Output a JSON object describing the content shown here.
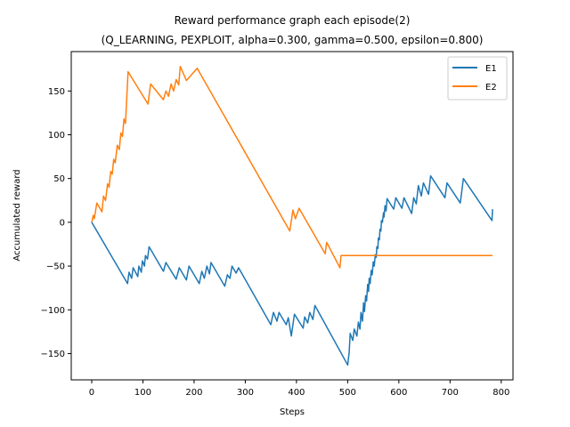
{
  "chart_data": {
    "type": "line",
    "title": "Reward performance graph each episode(2)",
    "subtitle": "(Q_LEARNING, PEXPLOIT, alpha=0.300, gamma=0.500, epsilon=0.800)",
    "xlabel": "Steps",
    "ylabel": "Accumulated reward",
    "xlim": [
      -40,
      823
    ],
    "ylim": [
      -180,
      195
    ],
    "xticks": [
      0,
      100,
      200,
      300,
      400,
      500,
      600,
      700,
      800
    ],
    "yticks": [
      -150,
      -100,
      -50,
      0,
      50,
      100,
      150
    ],
    "legend_position": "top-right",
    "grid": false,
    "series": [
      {
        "name": "E1",
        "color": "#1f77b4",
        "points": [
          [
            0,
            0
          ],
          [
            70,
            -70
          ],
          [
            73,
            -57
          ],
          [
            78,
            -64
          ],
          [
            81,
            -52
          ],
          [
            90,
            -62
          ],
          [
            92,
            -50
          ],
          [
            97,
            -57
          ],
          [
            99,
            -44
          ],
          [
            103,
            -50
          ],
          [
            105,
            -38
          ],
          [
            109,
            -42
          ],
          [
            112,
            -28
          ],
          [
            140,
            -56
          ],
          [
            145,
            -46
          ],
          [
            165,
            -65
          ],
          [
            171,
            -52
          ],
          [
            185,
            -66
          ],
          [
            190,
            -50
          ],
          [
            210,
            -70
          ],
          [
            215,
            -56
          ],
          [
            220,
            -64
          ],
          [
            225,
            -50
          ],
          [
            230,
            -59
          ],
          [
            233,
            -46
          ],
          [
            260,
            -73
          ],
          [
            265,
            -60
          ],
          [
            270,
            -64
          ],
          [
            274,
            -50
          ],
          [
            282,
            -58
          ],
          [
            287,
            -52
          ],
          [
            350,
            -117
          ],
          [
            355,
            -103
          ],
          [
            362,
            -113
          ],
          [
            366,
            -103
          ],
          [
            380,
            -117
          ],
          [
            384,
            -109
          ],
          [
            390,
            -130
          ],
          [
            396,
            -105
          ],
          [
            413,
            -121
          ],
          [
            416,
            -108
          ],
          [
            422,
            -115
          ],
          [
            426,
            -103
          ],
          [
            432,
            -111
          ],
          [
            436,
            -95
          ],
          [
            500,
            -163
          ],
          [
            503,
            -148
          ],
          [
            505,
            -127
          ],
          [
            510,
            -135
          ],
          [
            513,
            -122
          ],
          [
            518,
            -130
          ],
          [
            521,
            -114
          ],
          [
            524,
            -122
          ],
          [
            526,
            -103
          ],
          [
            529,
            -113
          ],
          [
            531,
            -92
          ],
          [
            533,
            -102
          ],
          [
            535,
            -84
          ],
          [
            537,
            -90
          ],
          [
            539,
            -71
          ],
          [
            541,
            -79
          ],
          [
            542,
            -64
          ],
          [
            544,
            -70
          ],
          [
            546,
            -55
          ],
          [
            548,
            -60
          ],
          [
            550,
            -45
          ],
          [
            552,
            -50
          ],
          [
            554,
            -37
          ],
          [
            556,
            -40
          ],
          [
            557,
            -28
          ],
          [
            559,
            -30
          ],
          [
            560,
            -18
          ],
          [
            562,
            -20
          ],
          [
            563,
            -8
          ],
          [
            565,
            -10
          ],
          [
            566,
            2
          ],
          [
            568,
            0
          ],
          [
            570,
            11
          ],
          [
            571,
            6
          ],
          [
            573,
            19
          ],
          [
            575,
            13
          ],
          [
            577,
            27
          ],
          [
            590,
            15
          ],
          [
            594,
            28
          ],
          [
            606,
            16
          ],
          [
            610,
            28
          ],
          [
            625,
            10
          ],
          [
            629,
            28
          ],
          [
            634,
            21
          ],
          [
            638,
            42
          ],
          [
            644,
            30
          ],
          [
            648,
            45
          ],
          [
            658,
            32
          ],
          [
            662,
            53
          ],
          [
            690,
            28
          ],
          [
            694,
            45
          ],
          [
            720,
            22
          ],
          [
            726,
            50
          ],
          [
            782,
            2
          ],
          [
            783,
            15
          ]
        ]
      },
      {
        "name": "E2",
        "color": "#ff7f0e",
        "points": [
          [
            0,
            0
          ],
          [
            3,
            8
          ],
          [
            5,
            4
          ],
          [
            10,
            22
          ],
          [
            20,
            12
          ],
          [
            23,
            30
          ],
          [
            27,
            25
          ],
          [
            31,
            44
          ],
          [
            34,
            40
          ],
          [
            37,
            58
          ],
          [
            40,
            55
          ],
          [
            43,
            72
          ],
          [
            46,
            68
          ],
          [
            50,
            88
          ],
          [
            54,
            83
          ],
          [
            57,
            102
          ],
          [
            60,
            98
          ],
          [
            63,
            118
          ],
          [
            66,
            113
          ],
          [
            71,
            172
          ],
          [
            110,
            135
          ],
          [
            115,
            158
          ],
          [
            140,
            140
          ],
          [
            145,
            150
          ],
          [
            150,
            144
          ],
          [
            155,
            158
          ],
          [
            160,
            150
          ],
          [
            165,
            163
          ],
          [
            170,
            157
          ],
          [
            173,
            178
          ],
          [
            185,
            162
          ],
          [
            206,
            176
          ],
          [
            387,
            -10
          ],
          [
            393,
            14
          ],
          [
            398,
            4
          ],
          [
            405,
            16
          ],
          [
            456,
            -36
          ],
          [
            459,
            -23
          ],
          [
            485,
            -52
          ],
          [
            487,
            -38
          ],
          [
            783,
            -38
          ]
        ]
      }
    ]
  }
}
